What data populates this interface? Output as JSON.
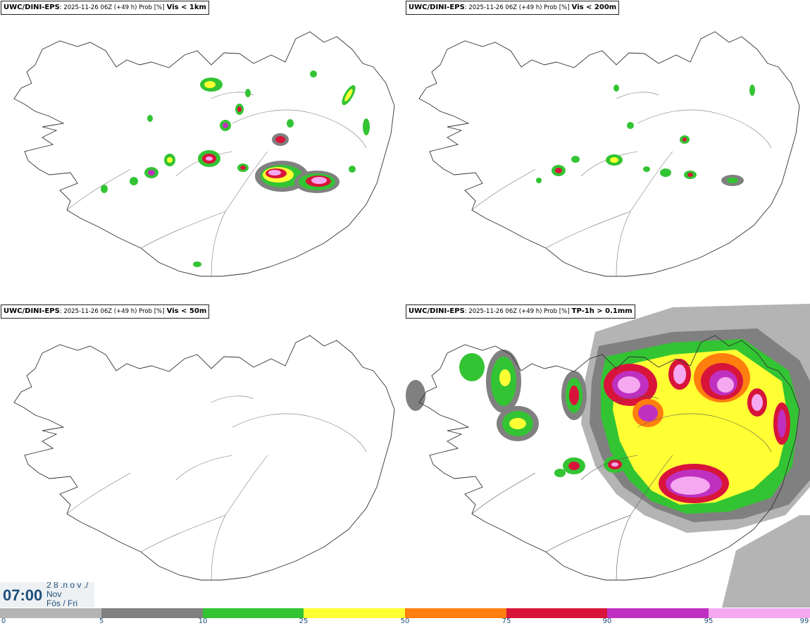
{
  "panels": [
    {
      "model": "UWC/DINI-EPS",
      "info": ": 2025-11-26 06Z (+49 h) Prob [%]",
      "variable": "Vis < 1km"
    },
    {
      "model": "UWC/DINI-EPS",
      "info": ": 2025-11-26 06Z (+49 h) Prob [%]",
      "variable": "Vis < 200m"
    },
    {
      "model": "UWC/DINI-EPS",
      "info": ": 2025-11-26 06Z (+49 h) Prob [%]",
      "variable": "Vis < 50m"
    },
    {
      "model": "UWC/DINI-EPS",
      "info": ": 2025-11-26 06Z (+49 h) Prob [%]",
      "variable": "TP-1h > 0.1mm"
    }
  ],
  "valid_time": {
    "clock": "07:00",
    "date_line1": "2 8 .n o v ./",
    "date_line2": "Nov",
    "date_line3": "Fös / Fri"
  },
  "colorbar": {
    "ticks": [
      "0",
      "5",
      "10",
      "25",
      "50",
      "75",
      "90",
      "95",
      "99"
    ],
    "colors": [
      "#ffffff",
      "#b4b4b4",
      "#808080",
      "#33c433",
      "#ffff33",
      "#ff7f0e",
      "#d8143a",
      "#c030c0",
      "#f5a8f0"
    ]
  }
}
